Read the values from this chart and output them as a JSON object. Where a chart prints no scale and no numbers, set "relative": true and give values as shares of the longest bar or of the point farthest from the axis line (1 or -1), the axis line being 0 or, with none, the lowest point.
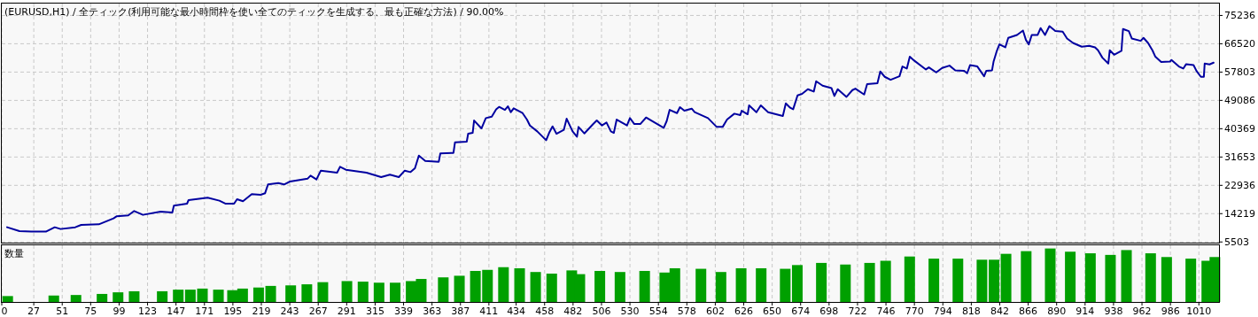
{
  "chart_data": [
    {
      "type": "line",
      "title": "(EURUSD,H1) / 全ティック(利用可能な最小時間枠を使い全てのティックを生成する、最も正確な方法) / 90.00%",
      "color": "#0000a0",
      "grid": true,
      "tick_labels": "y",
      "x": [
        4.5,
        14.9,
        24.8,
        37.2,
        44.7,
        49.6,
        62.0,
        67.0,
        81.9,
        94.3,
        96.8,
        106.7,
        111.7,
        119.1,
        134.0,
        143.9,
        145.2,
        156.3,
        157.6,
        173.7,
        183.6,
        188.6,
        196.0,
        198.5,
        203.5,
        210.9,
        218.4,
        222.1,
        224.6,
        233.3,
        238.2,
        243.2,
        258.1,
        260.5,
        265.5,
        269.2,
        282.9,
        285.4,
        290.3,
        307.7,
        320.1,
        327.5,
        335.0,
        340.0,
        344.9,
        348.6,
        351.9,
        357.3,
        368.7,
        370.0,
        381.1,
        382.4,
        392.3,
        393.5,
        397.3,
        398.5,
        404.7,
        408.4,
        413.4,
        417.1,
        419.6,
        424.5,
        427.0,
        429.5,
        431.9,
        439.4,
        443.1,
        445.6,
        451.8,
        459.3,
        461.8,
        464.7,
        468.0,
        474.2,
        476.6,
        481.6,
        485.3,
        486.6,
        491.5,
        499.0,
        502.0,
        506.4,
        510.2,
        513.9,
        516.4,
        518.8,
        527.5,
        530.0,
        533.7,
        538.7,
        543.6,
        548.6,
        558.5,
        561.0,
        563.5,
        569.7,
        572.2,
        575.9,
        582.1,
        584.6,
        595.8,
        603.2,
        608.2,
        611.9,
        618.1,
        623.1,
        624.3,
        629.3,
        630.5,
        636.7,
        640.4,
        646.6,
        659.0,
        661.5,
        665.2,
        667.7,
        671.4,
        675.2,
        680.1,
        685.1,
        687.1,
        692.5,
        700.0,
        702.5,
        705.3,
        712.7,
        717.7,
        720.2,
        727.6,
        730.1,
        738.8,
        741.2,
        745.0,
        749.9,
        757.4,
        759.9,
        763.6,
        766.1,
        769.8,
        779.7,
        782.2,
        788.4,
        793.4,
        799.6,
        804.5,
        812.0,
        814.5,
        817.0,
        823.1,
        828.8,
        830.6,
        835.5,
        836.8,
        839.3,
        841.7,
        846.7,
        849.2,
        856.6,
        861.6,
        864.1,
        866.5,
        869.0,
        874.0,
        876.5,
        880.2,
        883.9,
        888.9,
        895.1,
        898.8,
        903.8,
        911.2,
        917.4,
        922.4,
        924.9,
        928.6,
        933.6,
        934.8,
        938.5,
        944.7,
        946.0,
        950.9,
        953.4,
        960.9,
        963.3,
        967.1,
        970.8,
        973.3,
        978.2,
        985.7,
        986.9,
        993.1,
        996.8,
        999.3,
        1005.5,
        1008.0,
        1011.7,
        1014.2,
        1014.9,
        1019.0,
        1022.4
      ],
      "values": [
        10030,
        8850,
        8680,
        8680,
        10030,
        9490,
        10030,
        10760,
        10940,
        12760,
        13390,
        13670,
        15030,
        13850,
        14850,
        14580,
        16660,
        17300,
        18390,
        19110,
        18210,
        17300,
        17300,
        18660,
        18030,
        20200,
        20020,
        20480,
        23200,
        23650,
        23200,
        24110,
        25020,
        25930,
        24750,
        27470,
        26830,
        28650,
        27740,
        26830,
        25470,
        26200,
        25470,
        27470,
        27010,
        28190,
        32100,
        30460,
        30190,
        32730,
        32920,
        36190,
        36370,
        38820,
        39090,
        42900,
        40450,
        43630,
        44080,
        46350,
        47080,
        46170,
        47260,
        45450,
        46630,
        45170,
        43180,
        41360,
        39540,
        36820,
        39090,
        41090,
        38820,
        40000,
        43450,
        39540,
        37910,
        40910,
        38910,
        41810,
        42900,
        41360,
        42270,
        39540,
        39090,
        43180,
        41360,
        43630,
        41810,
        41810,
        43810,
        42720,
        40630,
        42720,
        46170,
        45170,
        46990,
        45900,
        46540,
        45450,
        43630,
        40910,
        40910,
        43180,
        44990,
        44540,
        45900,
        44810,
        47540,
        45450,
        47540,
        45450,
        44270,
        48170,
        46810,
        46350,
        50620,
        51080,
        52530,
        51800,
        54980,
        53620,
        52890,
        50440,
        52530,
        50170,
        52260,
        52710,
        50890,
        54070,
        54350,
        57980,
        56340,
        55430,
        56520,
        59520,
        58880,
        62520,
        61340,
        58610,
        59250,
        57700,
        59070,
        59790,
        58340,
        58160,
        57430,
        59970,
        59520,
        56520,
        58160,
        58340,
        61060,
        64060,
        66330,
        65420,
        68330,
        69240,
        70600,
        67690,
        66330,
        69240,
        69240,
        71330,
        69240,
        71960,
        70420,
        70240,
        68150,
        66780,
        65600,
        65870,
        65420,
        64510,
        62240,
        60430,
        64510,
        63150,
        64330,
        71050,
        70420,
        68150,
        67420,
        68330,
        66780,
        64510,
        62520,
        60880,
        61060,
        61520,
        59520,
        58880,
        60250,
        59970,
        58160,
        56340,
        56340,
        60430,
        60160,
        60700
      ],
      "xlim": [
        0,
        1027
      ],
      "xticks": [
        0,
        27,
        51,
        75,
        99,
        123,
        147,
        171,
        195,
        219,
        243,
        267,
        291,
        315,
        339,
        363,
        387,
        411,
        434,
        458,
        482,
        506,
        530,
        554,
        578,
        602,
        626,
        650,
        674,
        698,
        722,
        746,
        770,
        794,
        818,
        842,
        866,
        890,
        914,
        938,
        962,
        986,
        1010
      ],
      "ylim": [
        5300,
        78900
      ],
      "yticks": [
        5503,
        14219,
        22936,
        31653,
        40369,
        49086,
        57803,
        66520,
        75236
      ]
    },
    {
      "type": "bar",
      "title": "数量",
      "color": "#00a000",
      "relative": true,
      "grid": "x",
      "tick_labels": "x",
      "x": [
        5.0,
        43.9,
        62.6,
        84.6,
        98.1,
        111.7,
        135.4,
        148.9,
        159.1,
        169.3,
        182.8,
        194.7,
        203.2,
        216.7,
        226.9,
        243.8,
        257.4,
        270.9,
        291.2,
        304.8,
        318.3,
        331.9,
        345.4,
        353.9,
        372.5,
        386.1,
        399.6,
        409.8,
        423.3,
        436.9,
        450.4,
        464.0,
        480.9,
        487.7,
        504.6,
        521.6,
        542.4,
        559.4,
        567.9,
        589.9,
        606.8,
        623.8,
        640.7,
        661.0,
        671.2,
        691.5,
        711.8,
        732.2,
        745.7,
        766.0,
        786.4,
        806.7,
        827.0,
        837.2,
        847.3,
        864.3,
        884.6,
        901.5,
        918.5,
        935.4,
        948.9,
        969.3,
        982.8,
        1003.2,
        1016.7,
        1023.5
      ],
      "values": [
        0.11,
        0.12,
        0.13,
        0.15,
        0.18,
        0.2,
        0.2,
        0.23,
        0.23,
        0.25,
        0.23,
        0.22,
        0.25,
        0.27,
        0.3,
        0.31,
        0.33,
        0.37,
        0.39,
        0.38,
        0.36,
        0.36,
        0.39,
        0.43,
        0.46,
        0.49,
        0.58,
        0.6,
        0.65,
        0.63,
        0.56,
        0.53,
        0.59,
        0.52,
        0.58,
        0.56,
        0.58,
        0.55,
        0.63,
        0.62,
        0.56,
        0.63,
        0.63,
        0.62,
        0.69,
        0.73,
        0.7,
        0.73,
        0.77,
        0.85,
        0.81,
        0.81,
        0.79,
        0.79,
        0.9,
        0.95,
        1.0,
        0.94,
        0.91,
        0.88,
        0.97,
        0.91,
        0.84,
        0.81,
        0.77,
        0.84
      ],
      "xlim": [
        0,
        1027
      ],
      "xticks": [
        0,
        27,
        51,
        75,
        99,
        123,
        147,
        171,
        195,
        219,
        243,
        267,
        291,
        315,
        339,
        363,
        387,
        411,
        434,
        458,
        482,
        506,
        530,
        554,
        578,
        602,
        626,
        650,
        674,
        698,
        722,
        746,
        770,
        794,
        818,
        842,
        866,
        890,
        914,
        938,
        962,
        986,
        1010
      ]
    }
  ]
}
